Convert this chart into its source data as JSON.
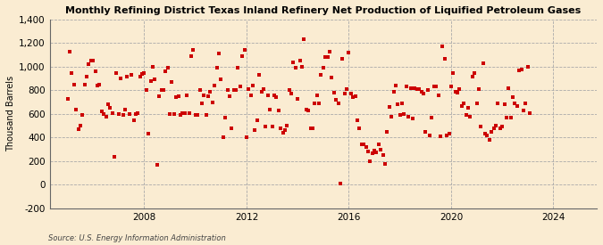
{
  "title": "Monthly Refining District Texas Inland Refinery Net Production of Liquified Petroleum Gases",
  "ylabel": "Thousand Barrels",
  "source": "Source: U.S. Energy Information Administration",
  "background_color": "#faecd2",
  "marker_color": "#cc0000",
  "ylim": [
    -200,
    1400
  ],
  "yticks": [
    -200,
    0,
    200,
    400,
    600,
    800,
    1000,
    1200,
    1400
  ],
  "xtick_years": [
    2008,
    2012,
    2016,
    2020,
    2024
  ],
  "xlim": [
    2004.3,
    2025.7
  ],
  "data": [
    [
      2005.0,
      730
    ],
    [
      2005.083,
      1130
    ],
    [
      2005.167,
      950
    ],
    [
      2005.25,
      850
    ],
    [
      2005.333,
      640
    ],
    [
      2005.417,
      470
    ],
    [
      2005.5,
      500
    ],
    [
      2005.583,
      590
    ],
    [
      2005.667,
      850
    ],
    [
      2005.75,
      920
    ],
    [
      2005.833,
      1020
    ],
    [
      2005.917,
      1050
    ],
    [
      2006.0,
      1050
    ],
    [
      2006.083,
      960
    ],
    [
      2006.167,
      840
    ],
    [
      2006.25,
      850
    ],
    [
      2006.333,
      620
    ],
    [
      2006.417,
      600
    ],
    [
      2006.5,
      580
    ],
    [
      2006.583,
      680
    ],
    [
      2006.667,
      650
    ],
    [
      2006.75,
      610
    ],
    [
      2006.833,
      240
    ],
    [
      2006.917,
      950
    ],
    [
      2007.0,
      600
    ],
    [
      2007.083,
      900
    ],
    [
      2007.167,
      590
    ],
    [
      2007.25,
      640
    ],
    [
      2007.333,
      920
    ],
    [
      2007.417,
      600
    ],
    [
      2007.5,
      930
    ],
    [
      2007.583,
      550
    ],
    [
      2007.667,
      600
    ],
    [
      2007.75,
      610
    ],
    [
      2007.833,
      920
    ],
    [
      2007.917,
      940
    ],
    [
      2008.0,
      950
    ],
    [
      2008.083,
      800
    ],
    [
      2008.167,
      430
    ],
    [
      2008.25,
      880
    ],
    [
      2008.333,
      1000
    ],
    [
      2008.417,
      890
    ],
    [
      2008.5,
      170
    ],
    [
      2008.583,
      750
    ],
    [
      2008.667,
      800
    ],
    [
      2008.75,
      800
    ],
    [
      2008.833,
      960
    ],
    [
      2008.917,
      990
    ],
    [
      2009.0,
      600
    ],
    [
      2009.083,
      870
    ],
    [
      2009.167,
      600
    ],
    [
      2009.25,
      740
    ],
    [
      2009.333,
      750
    ],
    [
      2009.417,
      590
    ],
    [
      2009.5,
      610
    ],
    [
      2009.583,
      610
    ],
    [
      2009.667,
      760
    ],
    [
      2009.75,
      610
    ],
    [
      2009.833,
      1090
    ],
    [
      2009.917,
      1140
    ],
    [
      2010.0,
      590
    ],
    [
      2010.083,
      590
    ],
    [
      2010.167,
      800
    ],
    [
      2010.25,
      690
    ],
    [
      2010.333,
      760
    ],
    [
      2010.417,
      590
    ],
    [
      2010.5,
      750
    ],
    [
      2010.583,
      790
    ],
    [
      2010.667,
      700
    ],
    [
      2010.75,
      840
    ],
    [
      2010.833,
      990
    ],
    [
      2010.917,
      1110
    ],
    [
      2011.0,
      890
    ],
    [
      2011.083,
      400
    ],
    [
      2011.167,
      570
    ],
    [
      2011.25,
      800
    ],
    [
      2011.333,
      750
    ],
    [
      2011.417,
      480
    ],
    [
      2011.5,
      800
    ],
    [
      2011.583,
      800
    ],
    [
      2011.667,
      990
    ],
    [
      2011.75,
      830
    ],
    [
      2011.833,
      1090
    ],
    [
      2011.917,
      1140
    ],
    [
      2012.0,
      400
    ],
    [
      2012.083,
      810
    ],
    [
      2012.167,
      760
    ],
    [
      2012.25,
      840
    ],
    [
      2012.333,
      460
    ],
    [
      2012.417,
      550
    ],
    [
      2012.5,
      930
    ],
    [
      2012.583,
      790
    ],
    [
      2012.667,
      810
    ],
    [
      2012.75,
      490
    ],
    [
      2012.833,
      760
    ],
    [
      2012.917,
      640
    ],
    [
      2013.0,
      490
    ],
    [
      2013.083,
      760
    ],
    [
      2013.167,
      740
    ],
    [
      2013.25,
      630
    ],
    [
      2013.333,
      480
    ],
    [
      2013.417,
      440
    ],
    [
      2013.5,
      460
    ],
    [
      2013.583,
      500
    ],
    [
      2013.667,
      800
    ],
    [
      2013.75,
      770
    ],
    [
      2013.833,
      1040
    ],
    [
      2013.917,
      990
    ],
    [
      2014.0,
      730
    ],
    [
      2014.083,
      1050
    ],
    [
      2014.167,
      1000
    ],
    [
      2014.25,
      1230
    ],
    [
      2014.333,
      640
    ],
    [
      2014.417,
      630
    ],
    [
      2014.5,
      480
    ],
    [
      2014.583,
      480
    ],
    [
      2014.667,
      690
    ],
    [
      2014.75,
      760
    ],
    [
      2014.833,
      690
    ],
    [
      2014.917,
      930
    ],
    [
      2015.0,
      990
    ],
    [
      2015.083,
      1080
    ],
    [
      2015.167,
      1080
    ],
    [
      2015.25,
      1130
    ],
    [
      2015.333,
      910
    ],
    [
      2015.417,
      780
    ],
    [
      2015.5,
      720
    ],
    [
      2015.583,
      690
    ],
    [
      2015.667,
      10
    ],
    [
      2015.75,
      1070
    ],
    [
      2015.833,
      770
    ],
    [
      2015.917,
      810
    ],
    [
      2016.0,
      1120
    ],
    [
      2016.083,
      770
    ],
    [
      2016.167,
      740
    ],
    [
      2016.25,
      750
    ],
    [
      2016.333,
      550
    ],
    [
      2016.417,
      480
    ],
    [
      2016.5,
      340
    ],
    [
      2016.583,
      340
    ],
    [
      2016.667,
      320
    ],
    [
      2016.75,
      280
    ],
    [
      2016.833,
      200
    ],
    [
      2016.917,
      265
    ],
    [
      2017.0,
      290
    ],
    [
      2017.083,
      275
    ],
    [
      2017.167,
      340
    ],
    [
      2017.25,
      300
    ],
    [
      2017.333,
      250
    ],
    [
      2017.417,
      175
    ],
    [
      2017.5,
      450
    ],
    [
      2017.583,
      660
    ],
    [
      2017.667,
      580
    ],
    [
      2017.75,
      790
    ],
    [
      2017.833,
      840
    ],
    [
      2017.917,
      680
    ],
    [
      2018.0,
      590
    ],
    [
      2018.083,
      690
    ],
    [
      2018.167,
      600
    ],
    [
      2018.25,
      830
    ],
    [
      2018.333,
      580
    ],
    [
      2018.417,
      820
    ],
    [
      2018.5,
      560
    ],
    [
      2018.583,
      820
    ],
    [
      2018.667,
      810
    ],
    [
      2018.75,
      810
    ],
    [
      2018.833,
      790
    ],
    [
      2018.917,
      770
    ],
    [
      2019.0,
      450
    ],
    [
      2019.083,
      800
    ],
    [
      2019.167,
      420
    ],
    [
      2019.25,
      570
    ],
    [
      2019.333,
      830
    ],
    [
      2019.417,
      830
    ],
    [
      2019.5,
      760
    ],
    [
      2019.583,
      410
    ],
    [
      2019.667,
      1170
    ],
    [
      2019.75,
      1070
    ],
    [
      2019.833,
      420
    ],
    [
      2019.917,
      430
    ],
    [
      2020.0,
      830
    ],
    [
      2020.083,
      950
    ],
    [
      2020.167,
      790
    ],
    [
      2020.25,
      780
    ],
    [
      2020.333,
      810
    ],
    [
      2020.417,
      670
    ],
    [
      2020.5,
      690
    ],
    [
      2020.583,
      590
    ],
    [
      2020.667,
      650
    ],
    [
      2020.75,
      580
    ],
    [
      2020.833,
      920
    ],
    [
      2020.917,
      950
    ],
    [
      2021.0,
      690
    ],
    [
      2021.083,
      810
    ],
    [
      2021.167,
      490
    ],
    [
      2021.25,
      1030
    ],
    [
      2021.333,
      430
    ],
    [
      2021.417,
      420
    ],
    [
      2021.5,
      380
    ],
    [
      2021.583,
      450
    ],
    [
      2021.667,
      480
    ],
    [
      2021.75,
      500
    ],
    [
      2021.833,
      690
    ],
    [
      2021.917,
      480
    ],
    [
      2022.0,
      490
    ],
    [
      2022.083,
      680
    ],
    [
      2022.167,
      570
    ],
    [
      2022.25,
      820
    ],
    [
      2022.333,
      570
    ],
    [
      2022.417,
      740
    ],
    [
      2022.5,
      690
    ],
    [
      2022.583,
      670
    ],
    [
      2022.667,
      970
    ],
    [
      2022.75,
      980
    ],
    [
      2022.833,
      630
    ],
    [
      2022.917,
      690
    ],
    [
      2023.0,
      1000
    ],
    [
      2023.083,
      610
    ]
  ]
}
